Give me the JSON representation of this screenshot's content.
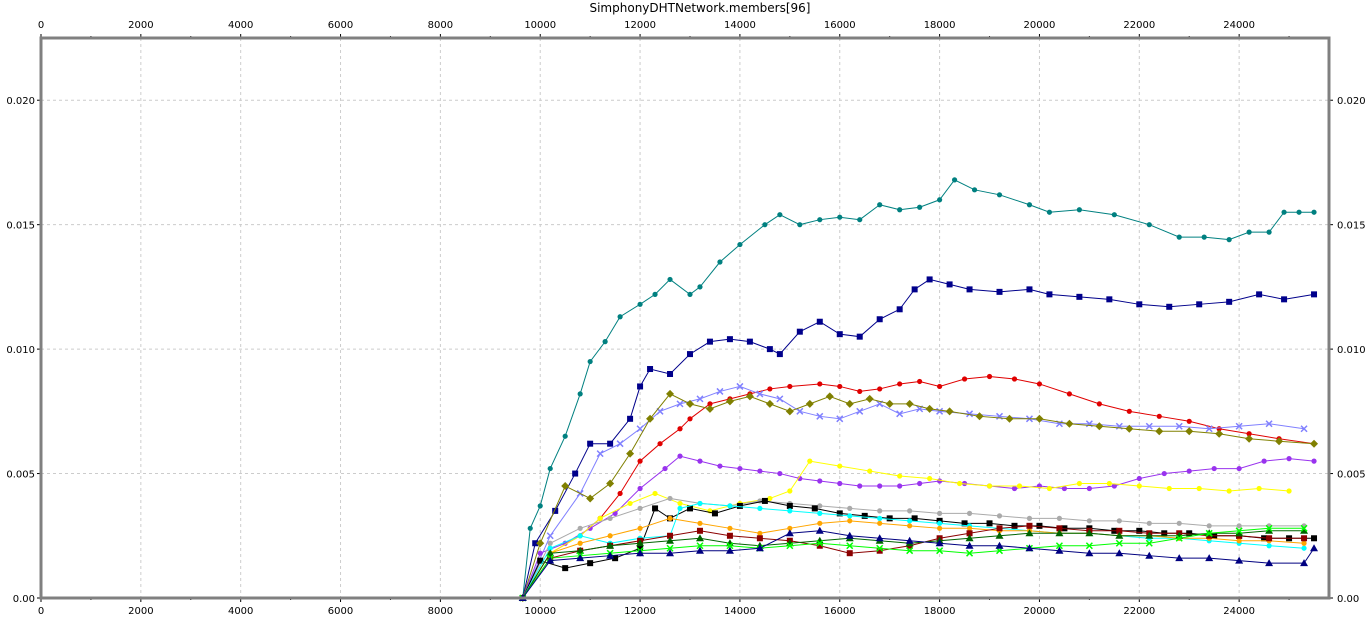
{
  "chart_data": {
    "type": "line",
    "title": "SimphonyDHTNetwork.members[96]",
    "xlabel": "",
    "ylabel": "",
    "xlim": [
      0,
      25800
    ],
    "ylim": [
      0,
      0.0225
    ],
    "xticks": [
      0,
      2000,
      4000,
      6000,
      8000,
      10000,
      12000,
      14000,
      16000,
      18000,
      20000,
      22000,
      24000
    ],
    "yticks": [
      0.0,
      0.005,
      0.01,
      0.015,
      0.02
    ],
    "ytick_labels": [
      "0.00",
      "0.005",
      "0.010",
      "0.015",
      "0.020"
    ],
    "xaxis_top": true,
    "yaxis_right": true,
    "grid": true,
    "legend": "none",
    "series": [
      {
        "color": "#008080",
        "marker": "circle",
        "x": [
          9650,
          9800,
          10000,
          10200,
          10500,
          10800,
          11000,
          11300,
          11600,
          12000,
          12300,
          12600,
          13000,
          13200,
          13600,
          14000,
          14500,
          14800,
          15200,
          15600,
          16000,
          16400,
          16800,
          17200,
          17600,
          18000,
          18300,
          18700,
          19200,
          19800,
          20200,
          20800,
          21500,
          22200,
          22800,
          23300,
          23800,
          24200,
          24600,
          24900,
          25200,
          25500
        ],
        "y": [
          0.0,
          0.0028,
          0.0037,
          0.0052,
          0.0065,
          0.0082,
          0.0095,
          0.0103,
          0.0113,
          0.0118,
          0.0122,
          0.0128,
          0.0122,
          0.0125,
          0.0135,
          0.0142,
          0.015,
          0.0154,
          0.015,
          0.0152,
          0.0153,
          0.0152,
          0.0158,
          0.0156,
          0.0157,
          0.016,
          0.0168,
          0.0164,
          0.0162,
          0.0158,
          0.0155,
          0.0156,
          0.0154,
          0.015,
          0.0145,
          0.0145,
          0.0144,
          0.0147,
          0.0147,
          0.0155,
          0.0155,
          0.0155
        ]
      },
      {
        "color": "#00008b",
        "marker": "square",
        "x": [
          9650,
          9900,
          10300,
          10700,
          11000,
          11400,
          11800,
          12000,
          12200,
          12600,
          13000,
          13400,
          13800,
          14200,
          14600,
          14800,
          15200,
          15600,
          16000,
          16400,
          16800,
          17200,
          17500,
          17800,
          18200,
          18600,
          19200,
          19800,
          20200,
          20800,
          21400,
          22000,
          22600,
          23200,
          23800,
          24400,
          24900,
          25500
        ],
        "y": [
          0.0,
          0.0022,
          0.0035,
          0.005,
          0.0062,
          0.0062,
          0.0072,
          0.0085,
          0.0092,
          0.009,
          0.0098,
          0.0103,
          0.0104,
          0.0103,
          0.01,
          0.0098,
          0.0107,
          0.0111,
          0.0106,
          0.0105,
          0.0112,
          0.0116,
          0.0124,
          0.0128,
          0.0126,
          0.0124,
          0.0123,
          0.0124,
          0.0122,
          0.0121,
          0.012,
          0.0118,
          0.0117,
          0.0118,
          0.0119,
          0.0122,
          0.012,
          0.0122
        ]
      },
      {
        "color": "#e00000",
        "marker": "circle",
        "x": [
          9650,
          10200,
          10800,
          11200,
          11600,
          12000,
          12400,
          12800,
          13000,
          13400,
          13800,
          14200,
          14600,
          15000,
          15600,
          16000,
          16400,
          16800,
          17200,
          17600,
          18000,
          18500,
          19000,
          19500,
          20000,
          20600,
          21200,
          21800,
          22400,
          23000,
          23600,
          24200,
          24800,
          25500
        ],
        "y": [
          0.0,
          0.0018,
          0.0025,
          0.0032,
          0.0042,
          0.0055,
          0.0062,
          0.0068,
          0.0072,
          0.0078,
          0.008,
          0.0082,
          0.0084,
          0.0085,
          0.0086,
          0.0085,
          0.0083,
          0.0084,
          0.0086,
          0.0087,
          0.0085,
          0.0088,
          0.0089,
          0.0088,
          0.0086,
          0.0082,
          0.0078,
          0.0075,
          0.0073,
          0.0071,
          0.0068,
          0.0066,
          0.0064,
          0.0062
        ]
      },
      {
        "color": "#8080ff",
        "marker": "x",
        "x": [
          9650,
          10200,
          10800,
          11200,
          11600,
          12000,
          12400,
          12800,
          13200,
          13600,
          14000,
          14400,
          14800,
          15200,
          15600,
          16000,
          16400,
          16800,
          17200,
          17600,
          18000,
          18600,
          19200,
          19800,
          20400,
          21000,
          21600,
          22200,
          22800,
          23400,
          24000,
          24600,
          25300
        ],
        "y": [
          0.0,
          0.0025,
          0.0042,
          0.0058,
          0.0062,
          0.0068,
          0.0075,
          0.0078,
          0.008,
          0.0083,
          0.0085,
          0.0082,
          0.008,
          0.0075,
          0.0073,
          0.0072,
          0.0075,
          0.0078,
          0.0074,
          0.0076,
          0.0075,
          0.0074,
          0.0073,
          0.0072,
          0.007,
          0.007,
          0.0069,
          0.0069,
          0.0069,
          0.0068,
          0.0069,
          0.007,
          0.0068
        ]
      },
      {
        "color": "#808000",
        "marker": "diamond",
        "x": [
          9650,
          10000,
          10500,
          11000,
          11400,
          11800,
          12200,
          12600,
          13000,
          13400,
          13800,
          14200,
          14600,
          15000,
          15400,
          15800,
          16200,
          16600,
          17000,
          17400,
          17800,
          18200,
          18800,
          19400,
          20000,
          20600,
          21200,
          21800,
          22400,
          23000,
          23600,
          24200,
          24800,
          25500
        ],
        "y": [
          0.0,
          0.0022,
          0.0045,
          0.004,
          0.0046,
          0.0058,
          0.0072,
          0.0082,
          0.0078,
          0.0076,
          0.0079,
          0.0081,
          0.0078,
          0.0075,
          0.0078,
          0.0081,
          0.0078,
          0.008,
          0.0078,
          0.0078,
          0.0076,
          0.0075,
          0.0073,
          0.0072,
          0.0072,
          0.007,
          0.0069,
          0.0068,
          0.0067,
          0.0067,
          0.0066,
          0.0064,
          0.0063,
          0.0062
        ]
      },
      {
        "color": "#9933ee",
        "marker": "circle",
        "x": [
          9650,
          10000,
          10500,
          11000,
          11500,
          12000,
          12500,
          12800,
          13200,
          13600,
          14000,
          14400,
          14800,
          15200,
          15600,
          16000,
          16400,
          16800,
          17200,
          17600,
          18000,
          18500,
          19000,
          19500,
          20000,
          20500,
          21000,
          21500,
          22000,
          22500,
          23000,
          23500,
          24000,
          24500,
          25000,
          25500
        ],
        "y": [
          0.0,
          0.0018,
          0.0022,
          0.0028,
          0.0034,
          0.0044,
          0.0052,
          0.0057,
          0.0055,
          0.0053,
          0.0052,
          0.0051,
          0.005,
          0.0048,
          0.0047,
          0.0046,
          0.0045,
          0.0045,
          0.0045,
          0.0046,
          0.0047,
          0.0046,
          0.0045,
          0.0044,
          0.0045,
          0.0044,
          0.0044,
          0.0045,
          0.0048,
          0.005,
          0.0051,
          0.0052,
          0.0052,
          0.0055,
          0.0056,
          0.0055
        ]
      },
      {
        "color": "#ffff00",
        "marker": "circle",
        "x": [
          9650,
          10200,
          10800,
          11200,
          11800,
          12300,
          12800,
          13400,
          14000,
          14600,
          15000,
          15400,
          16000,
          16600,
          17200,
          17800,
          18400,
          19000,
          19600,
          20200,
          20800,
          21400,
          22000,
          22600,
          23200,
          23800,
          24400,
          25000
        ],
        "y": [
          0.0,
          0.0018,
          0.0025,
          0.0032,
          0.0038,
          0.0042,
          0.0038,
          0.0035,
          0.0038,
          0.004,
          0.0043,
          0.0055,
          0.0053,
          0.0051,
          0.0049,
          0.0048,
          0.0046,
          0.0045,
          0.0045,
          0.0044,
          0.0046,
          0.0046,
          0.0045,
          0.0044,
          0.0044,
          0.0043,
          0.0044,
          0.0043
        ]
      },
      {
        "color": "#aaaaaa",
        "marker": "circle",
        "x": [
          9650,
          10200,
          10800,
          11400,
          12000,
          12600,
          13200,
          13800,
          14400,
          15000,
          15600,
          16200,
          16800,
          17400,
          18000,
          18600,
          19200,
          19800,
          20400,
          21000,
          21600,
          22200,
          22800,
          23400,
          24000,
          24600,
          25300
        ],
        "y": [
          0.0,
          0.0022,
          0.0028,
          0.0032,
          0.0036,
          0.004,
          0.0038,
          0.0037,
          0.0039,
          0.0038,
          0.0037,
          0.0036,
          0.0035,
          0.0035,
          0.0034,
          0.0034,
          0.0033,
          0.0032,
          0.0032,
          0.0031,
          0.0031,
          0.003,
          0.003,
          0.0029,
          0.0029,
          0.0029,
          0.0029
        ]
      },
      {
        "color": "#000000",
        "marker": "square",
        "x": [
          9650,
          10000,
          10500,
          11000,
          11500,
          12000,
          12300,
          12600,
          13000,
          13500,
          14000,
          14500,
          15000,
          15500,
          16000,
          16500,
          17000,
          17500,
          18000,
          18500,
          19000,
          19500,
          20000,
          20500,
          21000,
          21500,
          22000,
          22500,
          23000,
          23500,
          24000,
          24500,
          25000,
          25500
        ],
        "y": [
          0.0,
          0.0015,
          0.0012,
          0.0014,
          0.0016,
          0.002,
          0.0036,
          0.0032,
          0.0036,
          0.0034,
          0.0037,
          0.0039,
          0.0037,
          0.0036,
          0.0034,
          0.0033,
          0.0032,
          0.0032,
          0.0031,
          0.003,
          0.003,
          0.0029,
          0.0029,
          0.0028,
          0.0028,
          0.0027,
          0.0027,
          0.0026,
          0.0026,
          0.0025,
          0.0025,
          0.0024,
          0.0024,
          0.0024
        ]
      },
      {
        "color": "#00ffff",
        "marker": "circle",
        "x": [
          9650,
          10200,
          10800,
          11400,
          12000,
          12600,
          12800,
          13200,
          13800,
          14400,
          15000,
          15600,
          16200,
          16800,
          17400,
          18000,
          18600,
          19200,
          19800,
          20400,
          21000,
          21600,
          22200,
          22800,
          23400,
          24000,
          24600,
          25300
        ],
        "y": [
          0.0,
          0.002,
          0.0025,
          0.0022,
          0.0024,
          0.0025,
          0.0036,
          0.0038,
          0.0037,
          0.0036,
          0.0035,
          0.0034,
          0.0033,
          0.0032,
          0.0031,
          0.003,
          0.0029,
          0.0028,
          0.0027,
          0.0026,
          0.0026,
          0.0025,
          0.0024,
          0.0024,
          0.0023,
          0.0022,
          0.0021,
          0.002
        ]
      },
      {
        "color": "#ffa500",
        "marker": "circle",
        "x": [
          9650,
          10200,
          10800,
          11400,
          12000,
          12600,
          13200,
          13800,
          14400,
          15000,
          15600,
          16200,
          16800,
          17400,
          18000,
          18600,
          19200,
          19800,
          20400,
          21000,
          21600,
          22200,
          22800,
          23400,
          24000,
          24600,
          25300
        ],
        "y": [
          0.0,
          0.0018,
          0.0022,
          0.0025,
          0.0028,
          0.0032,
          0.003,
          0.0028,
          0.0026,
          0.0028,
          0.003,
          0.0031,
          0.003,
          0.0029,
          0.0028,
          0.0028,
          0.0027,
          0.0027,
          0.0026,
          0.0026,
          0.0025,
          0.0025,
          0.0024,
          0.0024,
          0.0023,
          0.0023,
          0.0022
        ]
      },
      {
        "color": "#8b0000",
        "marker": "square",
        "x": [
          9650,
          10200,
          10800,
          11400,
          12000,
          12600,
          13200,
          13800,
          14400,
          15000,
          15600,
          16200,
          16800,
          17400,
          18000,
          18600,
          19200,
          19800,
          20400,
          21000,
          21600,
          22200,
          22800,
          23400,
          24000,
          24600,
          25300
        ],
        "y": [
          0.0,
          0.0016,
          0.0019,
          0.0021,
          0.0023,
          0.0025,
          0.0027,
          0.0025,
          0.0024,
          0.0023,
          0.0021,
          0.0018,
          0.0019,
          0.0021,
          0.0024,
          0.0026,
          0.0028,
          0.0029,
          0.0028,
          0.0027,
          0.0027,
          0.0026,
          0.0026,
          0.0025,
          0.0025,
          0.0024,
          0.0024
        ]
      },
      {
        "color": "#006400",
        "marker": "triangle",
        "x": [
          9650,
          10200,
          10800,
          11400,
          12000,
          12600,
          13200,
          13800,
          14400,
          15000,
          15600,
          16200,
          16800,
          17400,
          18000,
          18600,
          19200,
          19800,
          20400,
          21000,
          21600,
          22200,
          22800,
          23400,
          24000,
          24600,
          25300
        ],
        "y": [
          0.0,
          0.0018,
          0.0019,
          0.0021,
          0.0022,
          0.0023,
          0.0024,
          0.0022,
          0.0021,
          0.0022,
          0.0023,
          0.0024,
          0.0023,
          0.0022,
          0.0023,
          0.0024,
          0.0025,
          0.0026,
          0.0026,
          0.0026,
          0.0025,
          0.0025,
          0.0025,
          0.0026,
          0.0026,
          0.0027,
          0.0027
        ]
      },
      {
        "color": "#00ff00",
        "marker": "x",
        "x": [
          9650,
          10200,
          10800,
          11400,
          12000,
          12600,
          13200,
          13800,
          14400,
          15000,
          15600,
          16200,
          16800,
          17400,
          18000,
          18600,
          19200,
          19800,
          20400,
          21000,
          21600,
          22200,
          22800,
          23400,
          24000,
          24600,
          25300
        ],
        "y": [
          0.0,
          0.0016,
          0.0017,
          0.0018,
          0.0019,
          0.002,
          0.0021,
          0.0021,
          0.002,
          0.0021,
          0.0022,
          0.0021,
          0.002,
          0.0019,
          0.0019,
          0.0018,
          0.0019,
          0.002,
          0.0021,
          0.0021,
          0.0022,
          0.0022,
          0.0024,
          0.0026,
          0.0027,
          0.0028,
          0.0028
        ]
      },
      {
        "color": "#000080",
        "marker": "triangle",
        "x": [
          9650,
          10200,
          10800,
          11400,
          12000,
          12600,
          13200,
          13800,
          14400,
          15000,
          15600,
          16200,
          16800,
          17400,
          18000,
          18600,
          19200,
          19800,
          20400,
          21000,
          21600,
          22200,
          22800,
          23400,
          24000,
          24600,
          25300,
          25500
        ],
        "y": [
          0.0,
          0.0015,
          0.0016,
          0.0017,
          0.0018,
          0.0018,
          0.0019,
          0.0019,
          0.002,
          0.0026,
          0.0027,
          0.0025,
          0.0024,
          0.0023,
          0.0022,
          0.0021,
          0.0021,
          0.002,
          0.0019,
          0.0018,
          0.0018,
          0.0017,
          0.0016,
          0.0016,
          0.0015,
          0.0014,
          0.0014,
          0.002
        ]
      }
    ]
  }
}
